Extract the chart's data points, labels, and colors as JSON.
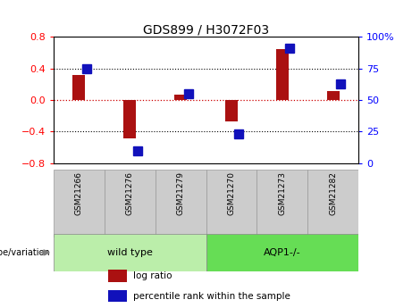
{
  "title": "GDS899 / H3072F03",
  "samples": [
    "GSM21266",
    "GSM21276",
    "GSM21279",
    "GSM21270",
    "GSM21273",
    "GSM21282"
  ],
  "log_ratio": [
    0.32,
    -0.48,
    0.07,
    -0.27,
    0.65,
    0.12
  ],
  "percentile_rank": [
    75,
    10,
    55,
    23,
    91,
    63
  ],
  "wild_type_indices": [
    0,
    1,
    2
  ],
  "aqp1_indices": [
    3,
    4,
    5
  ],
  "bar_color_red": "#aa1111",
  "bar_color_blue": "#1111bb",
  "wt_color": "#bbeeaa",
  "aqp1_color": "#66dd55",
  "sample_box_color": "#cccccc",
  "ylim_left": [
    -0.8,
    0.8
  ],
  "ylim_right": [
    0,
    100
  ],
  "yticks_left": [
    -0.8,
    -0.4,
    0.0,
    0.4,
    0.8
  ],
  "yticks_right": [
    0,
    25,
    50,
    75,
    100
  ],
  "ytick_labels_right": [
    "0",
    "25",
    "50",
    "75",
    "100%"
  ],
  "hlines_dotted": [
    -0.4,
    0.4
  ],
  "hline_zero_color": "#cc0000",
  "legend_red": "log ratio",
  "legend_blue": "percentile rank within the sample",
  "genotype_label": "genotype/variation",
  "wt_label": "wild type",
  "aqp1_label": "AQP1-/-",
  "red_bar_width": 0.25,
  "blue_marker_size": 7
}
